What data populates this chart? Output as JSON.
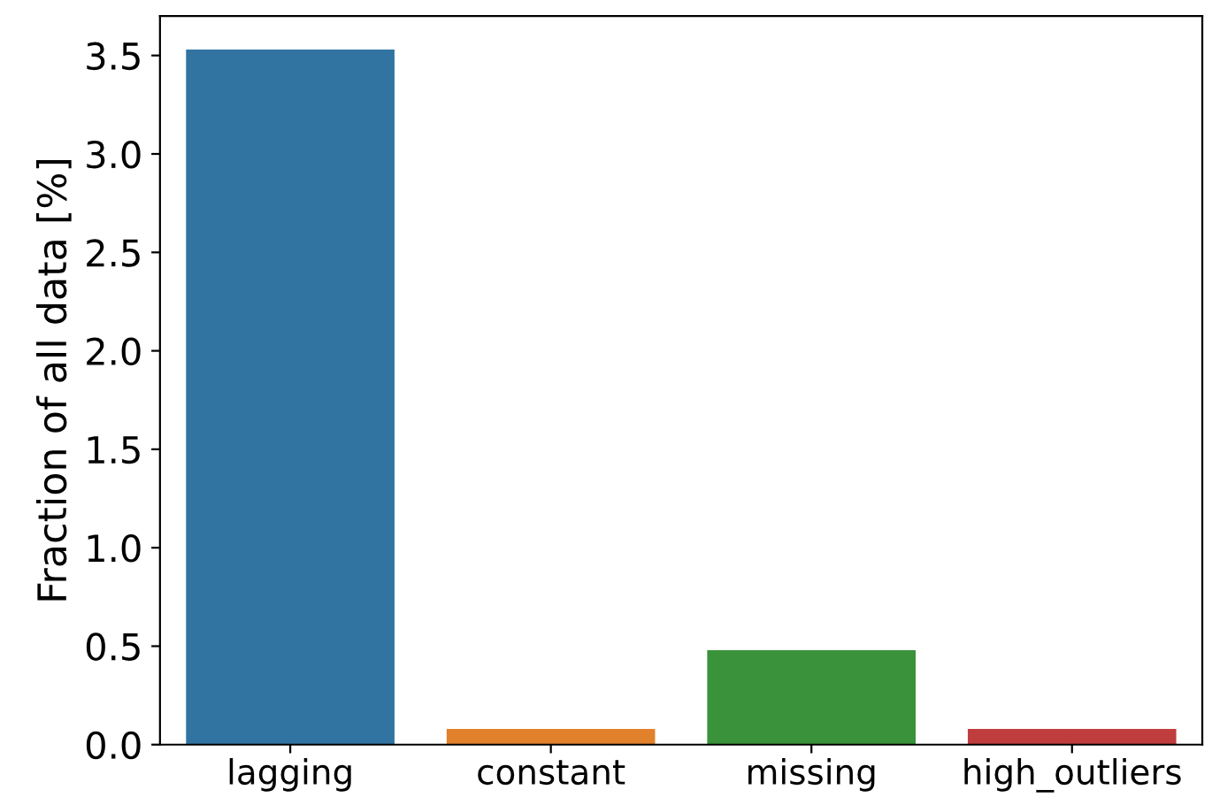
{
  "chart_data": {
    "type": "bar",
    "ylabel": "Fraction of all data [%]",
    "categories": [
      "lagging",
      "constant",
      "missing",
      "high_outliers"
    ],
    "values": [
      3.53,
      0.08,
      0.48,
      0.08
    ],
    "colors": [
      "#3274a1",
      "#e1812c",
      "#3a923a",
      "#c03d3e"
    ],
    "ylim": [
      0,
      3.7
    ],
    "yticks": [
      {
        "value": 0,
        "label": "0.0"
      },
      0.5,
      {
        "value": 1,
        "label": "1.0"
      },
      1.5,
      {
        "value": 2,
        "label": "2.0"
      },
      2.5,
      {
        "value": 3,
        "label": "3.0"
      },
      3.5
    ],
    "grid": false,
    "legend": false
  }
}
